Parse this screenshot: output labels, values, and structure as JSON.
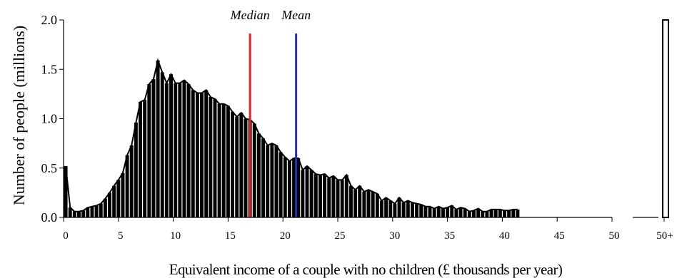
{
  "chart_data": {
    "type": "bar",
    "xlabel": "Equivalent income of a couple with no children (£ thousands per year)",
    "ylabel": "Number of people (millions)",
    "xlim": [
      0,
      50
    ],
    "ylim": [
      0,
      2.0
    ],
    "x_ticks": [
      "0",
      "5",
      "10",
      "15",
      "20",
      "25",
      "30",
      "35",
      "40",
      "45",
      "50"
    ],
    "x_tick_values": [
      0,
      5,
      10,
      15,
      20,
      25,
      30,
      35,
      40,
      45,
      50
    ],
    "y_ticks": [
      "0.0",
      "0.5",
      "1.0",
      "1.5",
      "2.0"
    ],
    "y_tick_values": [
      0,
      0.5,
      1.0,
      1.5,
      2.0
    ],
    "bin_width": 0.4,
    "values": [
      0.52,
      0.1,
      0.06,
      0.06,
      0.07,
      0.1,
      0.11,
      0.12,
      0.14,
      0.19,
      0.25,
      0.32,
      0.38,
      0.45,
      0.63,
      0.73,
      0.96,
      1.17,
      1.19,
      1.35,
      1.4,
      1.59,
      1.47,
      1.36,
      1.45,
      1.36,
      1.36,
      1.39,
      1.35,
      1.29,
      1.26,
      1.26,
      1.29,
      1.22,
      1.2,
      1.15,
      1.15,
      1.13,
      1.07,
      1.02,
      1.06,
      1.0,
      0.99,
      0.95,
      0.85,
      0.8,
      0.73,
      0.75,
      0.73,
      0.66,
      0.61,
      0.57,
      0.6,
      0.6,
      0.48,
      0.52,
      0.48,
      0.44,
      0.43,
      0.44,
      0.4,
      0.42,
      0.38,
      0.38,
      0.43,
      0.32,
      0.28,
      0.32,
      0.26,
      0.28,
      0.26,
      0.24,
      0.17,
      0.2,
      0.17,
      0.14,
      0.2,
      0.15,
      0.17,
      0.15,
      0.14,
      0.13,
      0.11,
      0.11,
      0.09,
      0.11,
      0.09,
      0.1,
      0.12,
      0.08,
      0.1,
      0.09,
      0.06,
      0.07,
      0.09,
      0.06,
      0.06,
      0.08,
      0.08,
      0.08,
      0.07,
      0.07,
      0.08,
      0.08
    ],
    "overflow_bin": {
      "label": "50+",
      "value": 2.0
    },
    "markers": [
      {
        "name": "Median",
        "x": 17.0,
        "color": "#e8231e"
      },
      {
        "name": "Mean",
        "x": 21.2,
        "color": "#1f2ad4"
      }
    ],
    "fill_pattern": "solid black / vertically striped"
  }
}
